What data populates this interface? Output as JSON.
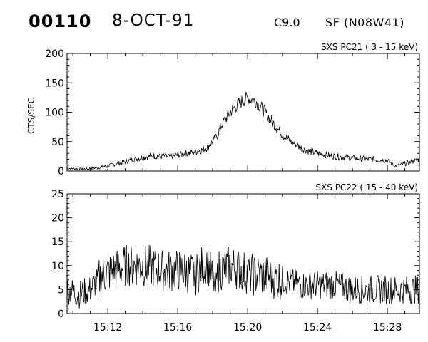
{
  "header": {
    "event_id": "00110",
    "date": "8-OCT-91",
    "flare_class": "C9.0",
    "flare_location": "SF (N08W41)"
  },
  "chart_data": [
    {
      "type": "line",
      "title": "SXS PC21  (  3 - 15 keV)",
      "ylabel": "CTS/SEC",
      "xlabel": "",
      "xlim": [
        "15:09:40",
        "15:29:50"
      ],
      "ylim": [
        0,
        200
      ],
      "yticks": [
        0,
        50,
        100,
        150,
        200
      ],
      "xticks": [
        "15:12",
        "15:16",
        "15:20",
        "15:24",
        "15:28"
      ],
      "show_xtick_labels": false,
      "series": [
        {
          "x": [
            "15:09:40",
            "15:10:30",
            "15:11:30",
            "15:12:30",
            "15:13:30",
            "15:14:30",
            "15:15:30",
            "15:16:30",
            "15:17:20",
            "15:17:40",
            "15:18:10",
            "15:18:30",
            "15:19:00",
            "15:19:30",
            "15:20:00",
            "15:20:30",
            "15:21:00",
            "15:21:30",
            "15:22:00",
            "15:22:30",
            "15:23:00",
            "15:23:30",
            "15:24:00",
            "15:25:00",
            "15:26:00",
            "15:27:00",
            "15:28:00",
            "15:28:30",
            "15:29:20",
            "15:29:50"
          ],
          "values": [
            5,
            3,
            6,
            12,
            20,
            26,
            24,
            30,
            35,
            40,
            55,
            78,
            100,
            115,
            125,
            118,
            100,
            80,
            62,
            50,
            40,
            34,
            30,
            25,
            22,
            20,
            18,
            8,
            15,
            20
          ]
        }
      ]
    },
    {
      "type": "line",
      "title": "SXS PC22  ( 15 - 40 keV)",
      "ylabel": "",
      "xlabel": "",
      "xlim": [
        "15:09:40",
        "15:29:50"
      ],
      "ylim": [
        0,
        25
      ],
      "yticks": [
        0,
        5,
        10,
        15,
        20,
        25
      ],
      "xticks": [
        "15:12",
        "15:16",
        "15:20",
        "15:24",
        "15:28"
      ],
      "show_xtick_labels": true,
      "series": [
        {
          "x": [
            "15:09:40",
            "15:10:20",
            "15:11:00",
            "15:11:40",
            "15:12:20",
            "15:13:00",
            "15:13:40",
            "15:14:20",
            "15:15:00",
            "15:15:40",
            "15:16:20",
            "15:17:00",
            "15:17:40",
            "15:18:10",
            "15:18:20",
            "15:19:00",
            "15:19:40",
            "15:20:20",
            "15:21:00",
            "15:22:00",
            "15:23:00",
            "15:24:00",
            "15:25:00",
            "15:26:00",
            "15:27:00",
            "15:28:00",
            "15:28:30",
            "15:29:20",
            "15:29:50"
          ],
          "values": [
            5,
            4,
            5,
            8,
            9,
            10,
            10,
            10,
            9,
            9,
            9,
            8,
            11,
            5,
            9,
            10,
            9,
            8,
            8,
            7,
            6,
            6,
            6,
            5,
            5,
            5,
            5,
            5,
            5
          ]
        }
      ]
    }
  ]
}
